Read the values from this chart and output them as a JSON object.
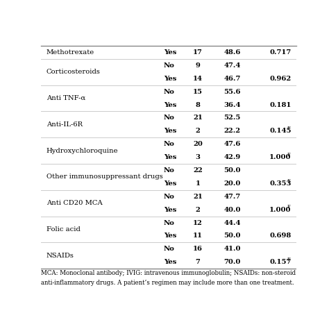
{
  "rows": [
    {
      "drug": "Methotrexate",
      "sub": "Yes",
      "n": "17",
      "pct": "48.6",
      "p": "0.717",
      "p_super": "",
      "drug_row": 0,
      "drug_span": 1
    },
    {
      "drug": "Corticosteroids",
      "sub": "No",
      "n": "9",
      "pct": "47.4",
      "p": "",
      "p_super": "",
      "drug_row": 1,
      "drug_span": 2
    },
    {
      "drug": "Corticosteroids",
      "sub": "Yes",
      "n": "14",
      "pct": "46.7",
      "p": "0.962",
      "p_super": "",
      "drug_row": -1,
      "drug_span": 2
    },
    {
      "drug": "Anti TNF-α",
      "sub": "No",
      "n": "15",
      "pct": "55.6",
      "p": "",
      "p_super": "",
      "drug_row": 3,
      "drug_span": 2
    },
    {
      "drug": "Anti TNF-α",
      "sub": "Yes",
      "n": "8",
      "pct": "36.4",
      "p": "0.181",
      "p_super": "",
      "drug_row": -1,
      "drug_span": 2
    },
    {
      "drug": "Anti-IL-6R",
      "sub": "No",
      "n": "21",
      "pct": "52.5",
      "p": "",
      "p_super": "",
      "drug_row": 5,
      "drug_span": 2
    },
    {
      "drug": "Anti-IL-6R",
      "sub": "Yes",
      "n": "2",
      "pct": "22.2",
      "p": "0.145",
      "p_super": "F",
      "drug_row": -1,
      "drug_span": 2
    },
    {
      "drug": "Hydroxychloroquine",
      "sub": "No",
      "n": "20",
      "pct": "47.6",
      "p": "",
      "p_super": "",
      "drug_row": 7,
      "drug_span": 2
    },
    {
      "drug": "Hydroxychloroquine",
      "sub": "Yes",
      "n": "3",
      "pct": "42.9",
      "p": "1.000",
      "p_super": "F",
      "drug_row": -1,
      "drug_span": 2
    },
    {
      "drug": "Other immunosuppressant drugs",
      "sub": "No",
      "n": "22",
      "pct": "50.0",
      "p": "",
      "p_super": "",
      "drug_row": 9,
      "drug_span": 2
    },
    {
      "drug": "Other immunosuppressant drugs",
      "sub": "Yes",
      "n": "1",
      "pct": "20.0",
      "p": "0.353",
      "p_super": "F",
      "drug_row": -1,
      "drug_span": 2
    },
    {
      "drug": "Anti CD20 MCA",
      "sub": "No",
      "n": "21",
      "pct": "47.7",
      "p": "",
      "p_super": "",
      "drug_row": 11,
      "drug_span": 2
    },
    {
      "drug": "Anti CD20 MCA",
      "sub": "Yes",
      "n": "2",
      "pct": "40.0",
      "p": "1.000",
      "p_super": "F",
      "drug_row": -1,
      "drug_span": 2
    },
    {
      "drug": "Folic acid",
      "sub": "No",
      "n": "12",
      "pct": "44.4",
      "p": "",
      "p_super": "",
      "drug_row": 13,
      "drug_span": 2
    },
    {
      "drug": "Folic acid",
      "sub": "Yes",
      "n": "11",
      "pct": "50.0",
      "p": "0.698",
      "p_super": "",
      "drug_row": -1,
      "drug_span": 2
    },
    {
      "drug": "NSAIDs",
      "sub": "No",
      "n": "16",
      "pct": "41.0",
      "p": "",
      "p_super": "",
      "drug_row": 15,
      "drug_span": 2
    },
    {
      "drug": "NSAIDs",
      "sub": "Yes",
      "n": "7",
      "pct": "70.0",
      "p": "0.157",
      "p_super": "F",
      "drug_row": -1,
      "drug_span": 2
    }
  ],
  "footnote_line1": "MCA: Monoclonal antibody; IVIG: intravenous immunoglobulin; NSAIDs: non-steroid",
  "footnote_line2": "anti-inflammatory drugs. A patient’s regimen may include more than one treatment.",
  "col_drug": 0.02,
  "col_sub": 0.48,
  "col_n": 0.615,
  "col_pct": 0.75,
  "col_p": 0.895,
  "bg_color": "#ffffff",
  "text_color": "#000000",
  "line_color_dark": "#888888",
  "line_color_light": "#cccccc",
  "font_size": 7.2,
  "footnote_font_size": 6.2
}
